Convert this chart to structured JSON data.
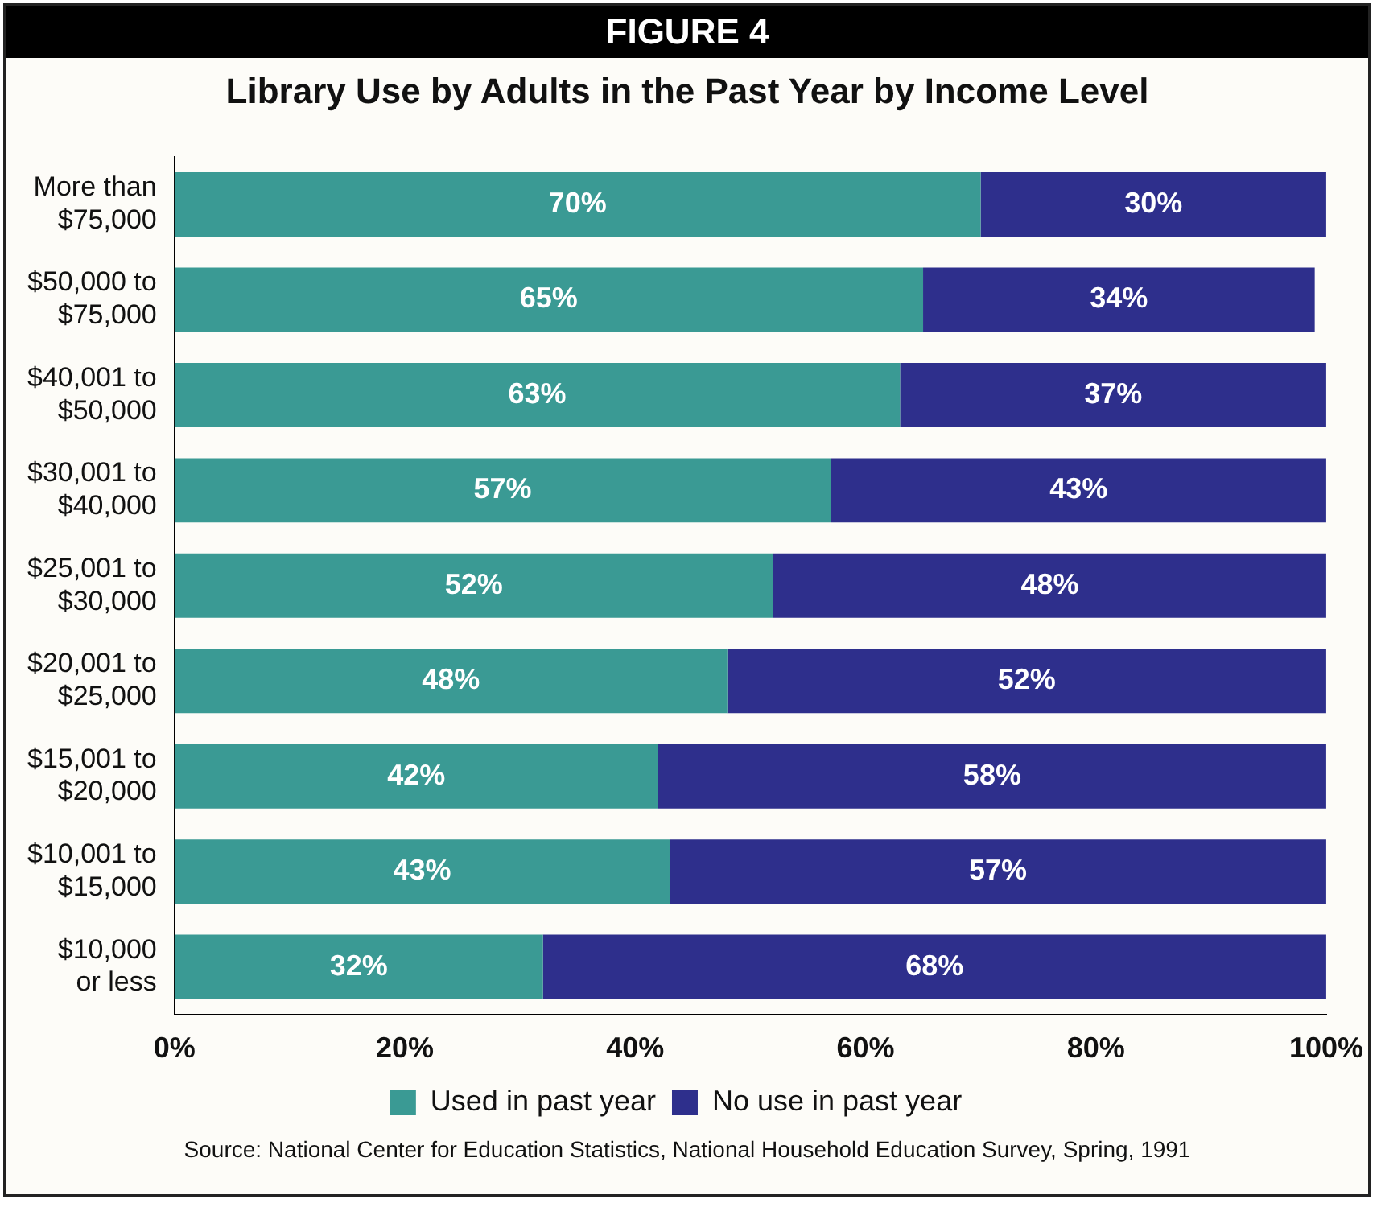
{
  "chart_data": {
    "type": "bar",
    "orientation": "horizontal",
    "stacked": true,
    "title": "FIGURE 4",
    "subtitle": "Library Use by Adults in the Past Year by Income Level",
    "categories": [
      "More than $75,000",
      "$50,000 to $75,000",
      "$40,001 to $50,000",
      "$30,001 to $40,000",
      "$25,001 to $30,000",
      "$20,001 to $25,000",
      "$15,001 to $20,000",
      "$10,001 to $15,000",
      "$10,000 or less"
    ],
    "series": [
      {
        "name": "Used in past year",
        "color": "#3a9a94",
        "values": [
          70,
          65,
          63,
          57,
          52,
          48,
          42,
          43,
          32
        ]
      },
      {
        "name": "No use in past year",
        "color": "#2e2f8c",
        "values": [
          30,
          34,
          37,
          43,
          48,
          52,
          58,
          57,
          68
        ]
      }
    ],
    "value_labels": [
      [
        "70%",
        "65%",
        "63%",
        "57%",
        "52%",
        "48%",
        "42%",
        "43%",
        "32%"
      ],
      [
        "30%",
        "34%",
        "37%",
        "43%",
        "48%",
        "52%",
        "58%",
        "57%",
        "68%"
      ]
    ],
    "xlim": [
      0,
      100
    ],
    "xticks": [
      {
        "value": 0,
        "label": "0%"
      },
      {
        "value": 20,
        "label": "20%"
      },
      {
        "value": 40,
        "label": "40%"
      },
      {
        "value": 60,
        "label": "60%"
      },
      {
        "value": 80,
        "label": "80%"
      },
      {
        "value": 100,
        "label": "100%"
      }
    ],
    "grid": false,
    "legend": "bottom",
    "annotations": [
      "Source: National Center for Education Statistics, National Household Education Survey, Spring, 1991"
    ]
  }
}
